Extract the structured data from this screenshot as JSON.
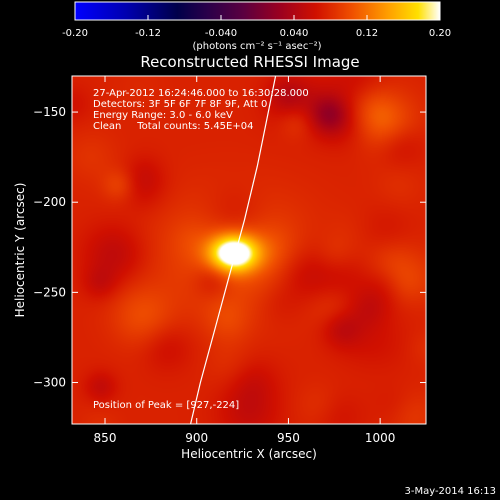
{
  "chart_data": {
    "type": "heatmap",
    "title": "Reconstructed RHESSI Image",
    "xlabel": "Heliocentric X (arcsec)",
    "ylabel": "Heliocentric Y (arcsec)",
    "xlim": [
      832,
      1025
    ],
    "ylim": [
      -323,
      -130
    ],
    "x_ticks": [
      850,
      900,
      950,
      1000
    ],
    "y_ticks": [
      -150,
      -200,
      -250,
      -300
    ],
    "colorbar": {
      "range": [
        -0.2,
        0.2
      ],
      "ticks": [
        "-0.20",
        "-0.12",
        "-0.040",
        "0.040",
        "0.12",
        "0.20"
      ],
      "tick_values": [
        -0.2,
        -0.12,
        -0.04,
        0.04,
        0.12,
        0.2
      ],
      "colormap": "rhessi-fire",
      "units": "(photons cm⁻² s⁻¹ asec⁻²)"
    },
    "annotations": [
      "27-Apr-2012 16:24:46.000 to 16:30:28.000",
      "Detectors: 3F 5F 6F 7F 8F 9F, Att 0",
      "Energy Range: 3.0 - 6.0 keV",
      "Clean     Total counts: 5.45E+04"
    ],
    "peak_label": "Position of Peak = [927,-224]",
    "peak": {
      "x": 927,
      "y": -224,
      "value": 0.2
    },
    "source": {
      "x": 920,
      "y": -228,
      "sigma_x": 9,
      "sigma_y": 7
    },
    "background_level": 0.075,
    "limb_curve": [
      [
        895,
        -330
      ],
      [
        902,
        -300
      ],
      [
        910,
        -270
      ],
      [
        918,
        -240
      ],
      [
        926,
        -210
      ],
      [
        933,
        -180
      ],
      [
        939,
        -150
      ],
      [
        944,
        -125
      ]
    ]
  },
  "footer": {
    "timestamp": "3-May-2014 16:13"
  }
}
